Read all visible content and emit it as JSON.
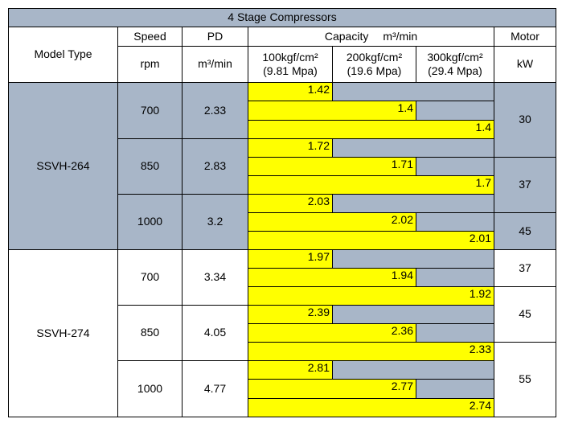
{
  "table": {
    "title": "4 Stage Compressors",
    "headers": {
      "model_type": "Model Type",
      "speed": "Speed",
      "speed_unit": "rpm",
      "pd": "PD",
      "pd_unit": "m³/min",
      "capacity": "Capacity",
      "capacity_unit": "m³/min",
      "pressures": [
        {
          "kgf": "100kgf/cm²",
          "mpa": "(9.81 Mpa)"
        },
        {
          "kgf": "200kgf/cm²",
          "mpa": "(19.6 Mpa)"
        },
        {
          "kgf": "300kgf/cm²",
          "mpa": "(29.4 Mpa)"
        }
      ],
      "motor": "Motor",
      "motor_unit": "kW"
    },
    "groups": [
      {
        "model": "SSVH-264",
        "rows": [
          {
            "speed": 700,
            "pd": 2.33,
            "capacity": [
              1.42,
              1.4,
              1.4
            ]
          },
          {
            "speed": 850,
            "pd": 2.83,
            "capacity": [
              1.72,
              1.71,
              1.7
            ]
          },
          {
            "speed": 1000,
            "pd": 3.2,
            "capacity": [
              2.03,
              2.02,
              2.01
            ]
          }
        ],
        "motors": [
          30,
          37,
          45
        ]
      },
      {
        "model": "SSVH-274",
        "rows": [
          {
            "speed": 700,
            "pd": 3.34,
            "capacity": [
              1.97,
              1.94,
              1.92
            ]
          },
          {
            "speed": 850,
            "pd": 4.05,
            "capacity": [
              2.39,
              2.36,
              2.33
            ]
          },
          {
            "speed": 1000,
            "pd": 4.77,
            "capacity": [
              2.81,
              2.77,
              2.74
            ]
          }
        ],
        "motors": [
          37,
          45,
          55
        ]
      }
    ]
  }
}
